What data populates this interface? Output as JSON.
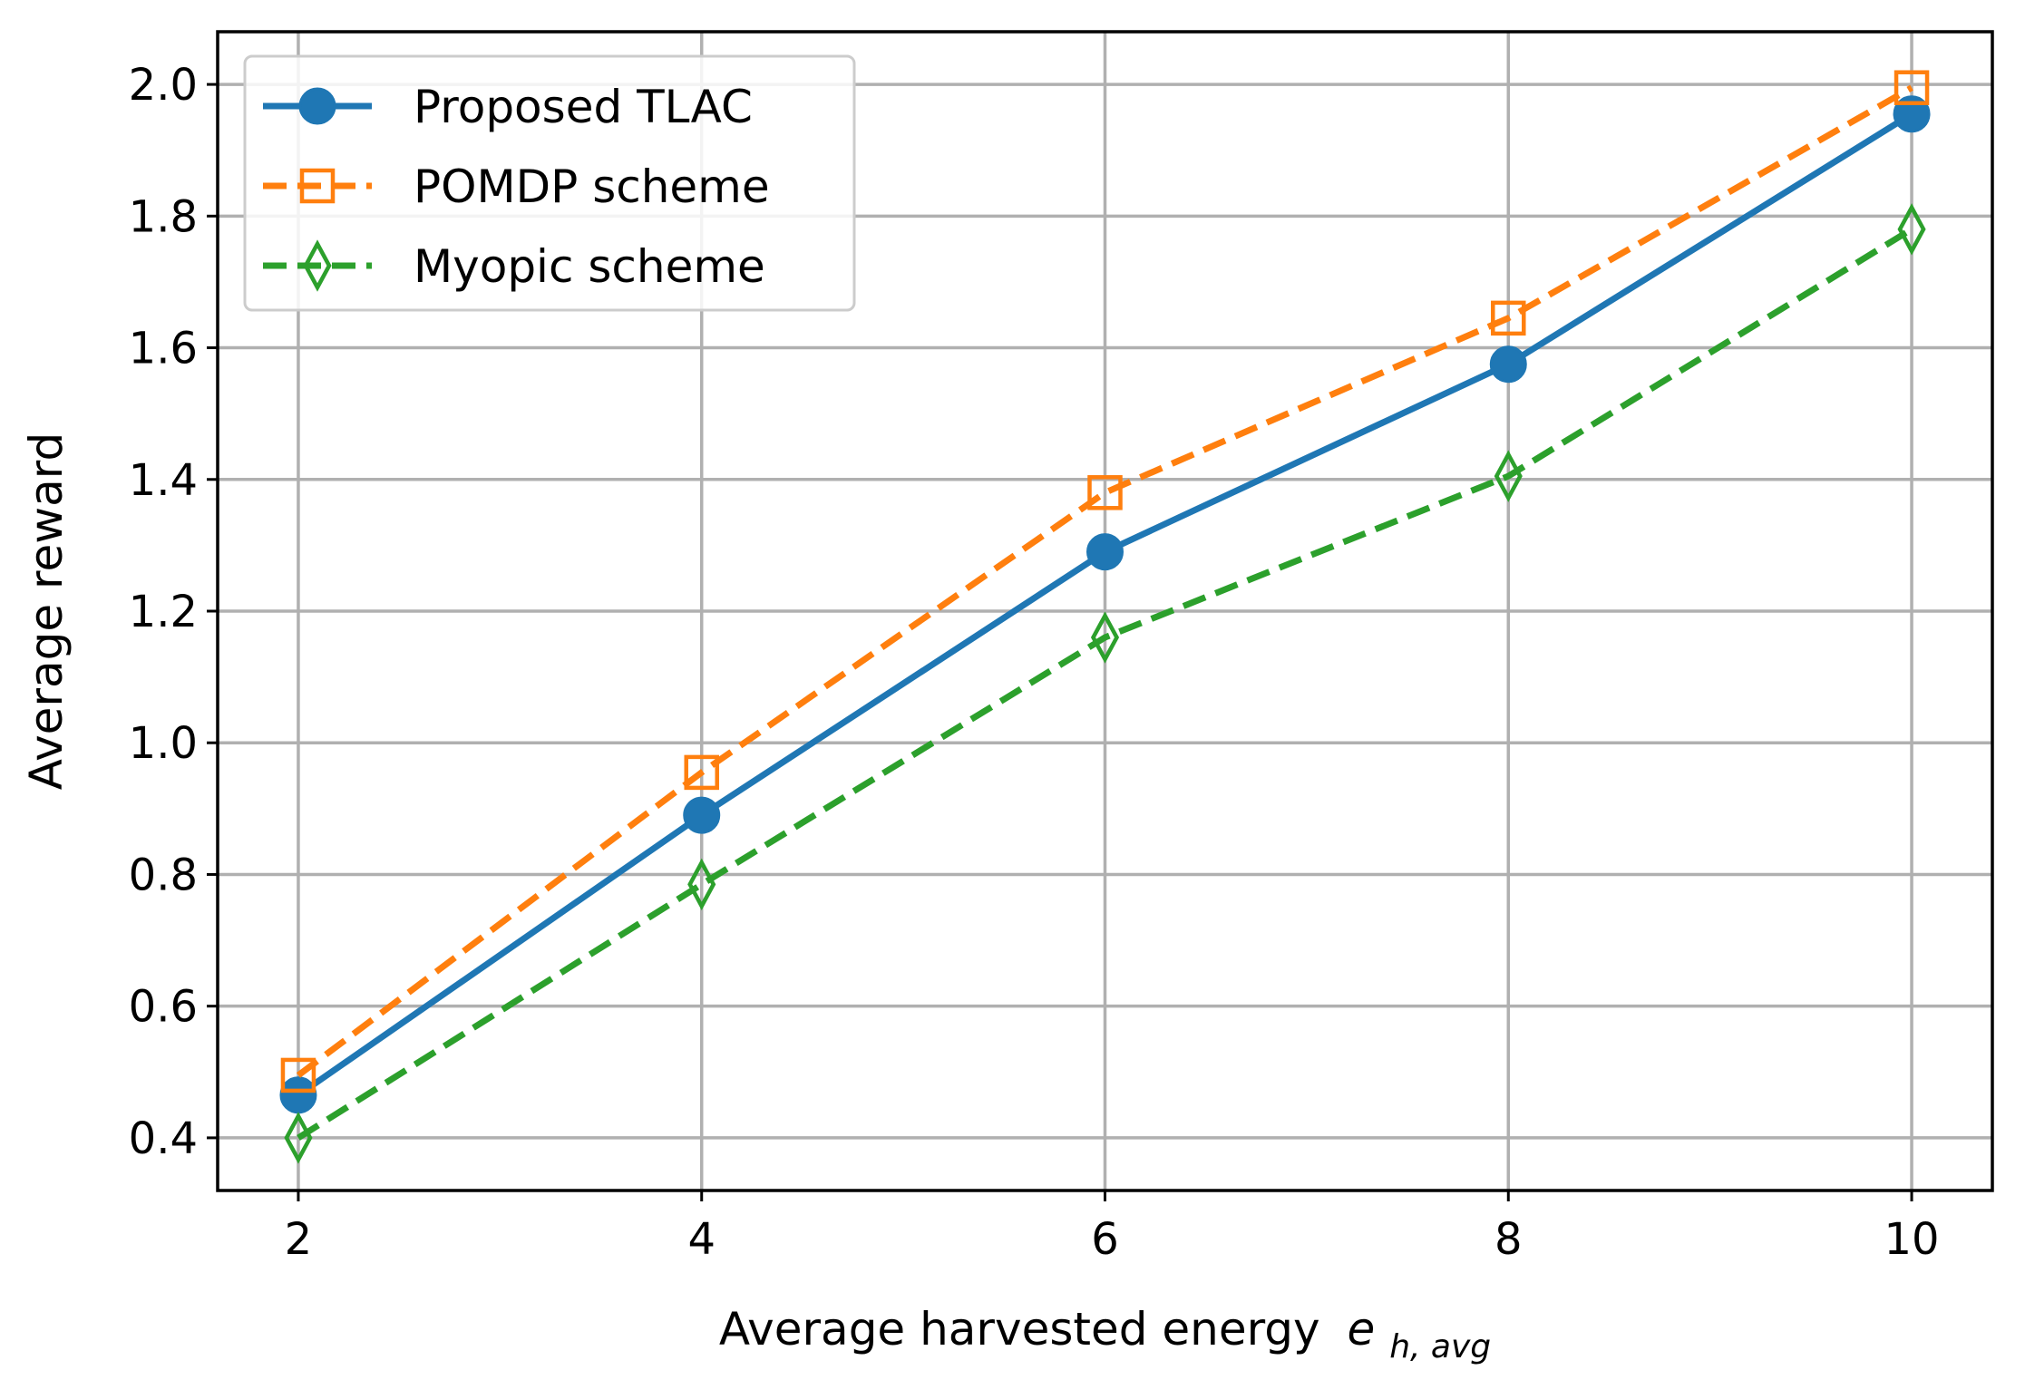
{
  "chart_data": {
    "type": "line",
    "title": "",
    "xlabel": "Average harvested energy",
    "xlabel_symbol": "e",
    "xlabel_subscript": "h, avg",
    "ylabel": "Average reward",
    "x": [
      2,
      4,
      6,
      8,
      10
    ],
    "xlim": [
      1.6,
      10.4
    ],
    "ylim": [
      0.32,
      2.08
    ],
    "xticks": [
      2,
      4,
      6,
      8,
      10
    ],
    "yticks": [
      0.4,
      0.6,
      0.8,
      1.0,
      1.2,
      1.4,
      1.6,
      1.8,
      2.0
    ],
    "ytick_labels": [
      "0.4",
      "0.6",
      "0.8",
      "1.0",
      "1.2",
      "1.4",
      "1.6",
      "1.8",
      "2.0"
    ],
    "grid": true,
    "legend_position": "top-left",
    "series": [
      {
        "name": "Proposed TLAC",
        "values": [
          0.465,
          0.89,
          1.29,
          1.575,
          1.955
        ],
        "color": "#1f77b4",
        "line_style": "solid",
        "marker": "filled-circle"
      },
      {
        "name": "POMDP scheme",
        "values": [
          0.495,
          0.955,
          1.38,
          1.645,
          1.995
        ],
        "color": "#ff7f0e",
        "line_style": "dashed",
        "marker": "open-square"
      },
      {
        "name": "Myopic scheme",
        "values": [
          0.4,
          0.785,
          1.16,
          1.405,
          1.78
        ],
        "color": "#2ca02c",
        "line_style": "dashed",
        "marker": "open-thin-diamond"
      }
    ]
  }
}
